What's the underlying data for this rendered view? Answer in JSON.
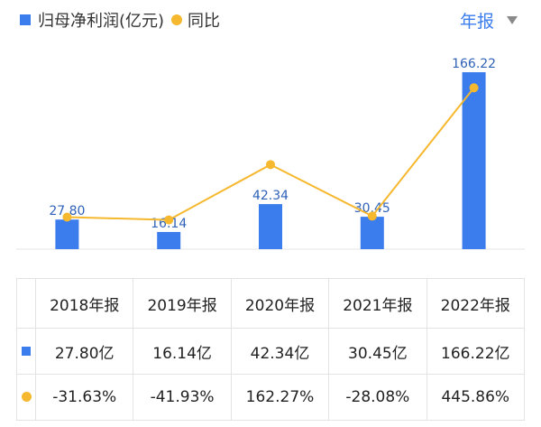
{
  "legend": {
    "bar_label": "归母净利润(亿元)",
    "line_label": "同比"
  },
  "period_selector": {
    "label": "年报"
  },
  "colors": {
    "bar": "#3b7ded",
    "line": "#f5b82e",
    "positive": "#c94a4a",
    "negative": "#3a9e6c"
  },
  "chart_data": {
    "type": "bar",
    "categories": [
      "2018年报",
      "2019年报",
      "2020年报",
      "2021年报",
      "2022年报"
    ],
    "series": [
      {
        "name": "归母净利润(亿元)",
        "type": "bar",
        "values": [
          27.8,
          16.14,
          42.34,
          30.45,
          166.22
        ]
      },
      {
        "name": "同比",
        "type": "line",
        "values": [
          -31.63,
          -41.93,
          162.27,
          -28.08,
          445.86
        ]
      }
    ],
    "bar_labels": [
      "27.80",
      "16.14",
      "42.34",
      "30.45",
      "166.22"
    ]
  },
  "table": {
    "headers": [
      "2018年报",
      "2019年报",
      "2020年报",
      "2021年报",
      "2022年报"
    ],
    "values": [
      "27.80亿",
      "16.14亿",
      "42.34亿",
      "30.45亿",
      "166.22亿"
    ],
    "yoy": [
      "-31.63%",
      "-41.93%",
      "162.27%",
      "-28.08%",
      "445.86%"
    ]
  }
}
